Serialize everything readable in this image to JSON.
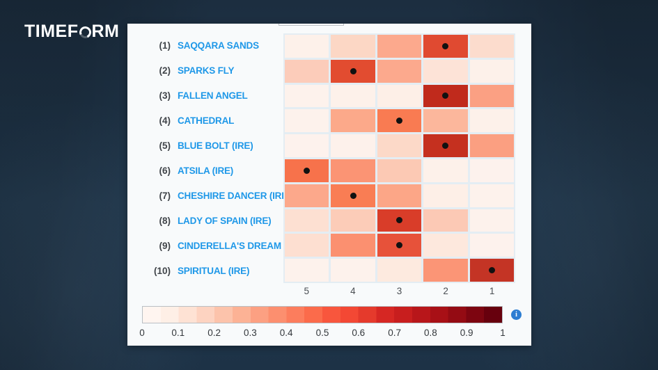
{
  "logo": {
    "pre": "TIMEF",
    "post": "RM",
    "o_icon": "timeform-o"
  },
  "accent_colors": {
    "name_link_blue": "#1f98e8",
    "info_icon_blue": "#2d7dd2",
    "background_navy": "#213850"
  },
  "info_icon_glyph": "i",
  "chart_data": {
    "type": "heatmap",
    "title": "",
    "description": "Predicted finishing-position probability heatmap per horse (dot marks most likely position)",
    "x_categories": [
      "5",
      "4",
      "3",
      "2",
      "1"
    ],
    "x_axis_range_note": "finishing positions shown 5 (left) to 1 (right)",
    "grid": "on",
    "value_range": [
      0,
      1
    ],
    "rows": [
      {
        "number": "(1)",
        "name": "SAQQARA SANDS",
        "values": [
          0.04,
          0.13,
          0.28,
          0.59,
          0.11
        ],
        "colors": [
          "#fdf1ea",
          "#fcd7c5",
          "#fca98d",
          "#e04a31",
          "#fcdccd"
        ],
        "dot_index": 3,
        "most_likely_position": "2"
      },
      {
        "number": "(2)",
        "name": "SPARKS FLY",
        "values": [
          0.17,
          0.58,
          0.28,
          0.09,
          0.04
        ],
        "colors": [
          "#fcccba",
          "#e24c30",
          "#fca98d",
          "#fde3d7",
          "#fdf1ea"
        ],
        "dot_index": 1,
        "most_likely_position": "4"
      },
      {
        "number": "(3)",
        "name": "FALLEN ANGEL",
        "values": [
          0.03,
          0.04,
          0.05,
          0.74,
          0.31
        ],
        "colors": [
          "#fdf2ec",
          "#fdf1ea",
          "#fdefe7",
          "#c02a1c",
          "#fba083"
        ],
        "dot_index": 3,
        "most_likely_position": "2"
      },
      {
        "number": "(4)",
        "name": "CATHEDRAL",
        "values": [
          0.03,
          0.28,
          0.45,
          0.24,
          0.04
        ],
        "colors": [
          "#fdf2ec",
          "#fca98a",
          "#f97b52",
          "#fcb79c",
          "#fdf1ea"
        ],
        "dot_index": 2,
        "most_likely_position": "3"
      },
      {
        "number": "(5)",
        "name": "BLUE BOLT (IRE)",
        "values": [
          0.03,
          0.04,
          0.12,
          0.72,
          0.32
        ],
        "colors": [
          "#fdf2ed",
          "#fdf1eb",
          "#fcd9c8",
          "#c5301f",
          "#fb9f81"
        ],
        "dot_index": 3,
        "most_likely_position": "2"
      },
      {
        "number": "(6)",
        "name": "ATSILA (IRE)",
        "values": [
          0.48,
          0.36,
          0.18,
          0.04,
          0.03
        ],
        "colors": [
          "#f7724b",
          "#fb9474",
          "#fcc9b4",
          "#fdf1ea",
          "#fdf2ed"
        ],
        "dot_index": 0,
        "most_likely_position": "5"
      },
      {
        "number": "(7)",
        "name": "CHESHIRE DANCER (IRE)",
        "values": [
          0.28,
          0.45,
          0.29,
          0.05,
          0.03
        ],
        "colors": [
          "#fca88b",
          "#f97d54",
          "#fca687",
          "#fdefe7",
          "#fdf2ec"
        ],
        "dot_index": 1,
        "most_likely_position": "4"
      },
      {
        "number": "(8)",
        "name": "LADY OF SPAIN (IRE)",
        "values": [
          0.1,
          0.17,
          0.63,
          0.18,
          0.03
        ],
        "colors": [
          "#fde0d2",
          "#fcccb8",
          "#d93d29",
          "#fcc9b5",
          "#fdf2ec"
        ],
        "dot_index": 2,
        "most_likely_position": "3"
      },
      {
        "number": "(9)",
        "name": "CINDERELLA'S DREAM",
        "values": [
          0.1,
          0.37,
          0.56,
          0.07,
          0.03
        ],
        "colors": [
          "#fddfd1",
          "#fb9070",
          "#e7523a",
          "#fde8dd",
          "#fdf2ed"
        ],
        "dot_index": 2,
        "most_likely_position": "3"
      },
      {
        "number": "(10)",
        "name": "SPIRITUAL (IRE)",
        "values": [
          0.03,
          0.03,
          0.06,
          0.35,
          0.71
        ],
        "colors": [
          "#fdf2ec",
          "#fdf2ec",
          "#fdeadf",
          "#fb9576",
          "#c43425"
        ],
        "dot_index": 4,
        "most_likely_position": "1"
      }
    ],
    "colorbar": {
      "orientation": "horizontal",
      "min": 0,
      "max": 1,
      "tick_labels": [
        "0",
        "0.1",
        "0.2",
        "0.3",
        "0.4",
        "0.5",
        "0.6",
        "0.7",
        "0.8",
        "0.9",
        "1"
      ],
      "colormap_name": "Reds",
      "steps": [
        "#fff5f0",
        "#feefe6",
        "#fee2d4",
        "#fdd3c1",
        "#fcc3ab",
        "#fcb295",
        "#fca082",
        "#fc8f6f",
        "#fc7d5d",
        "#fb6b4b",
        "#f8563d",
        "#f34834",
        "#e53a2c",
        "#d62723",
        "#c81e1e",
        "#b8161a",
        "#a81016",
        "#940b13",
        "#7d0510",
        "#67000d"
      ]
    }
  }
}
